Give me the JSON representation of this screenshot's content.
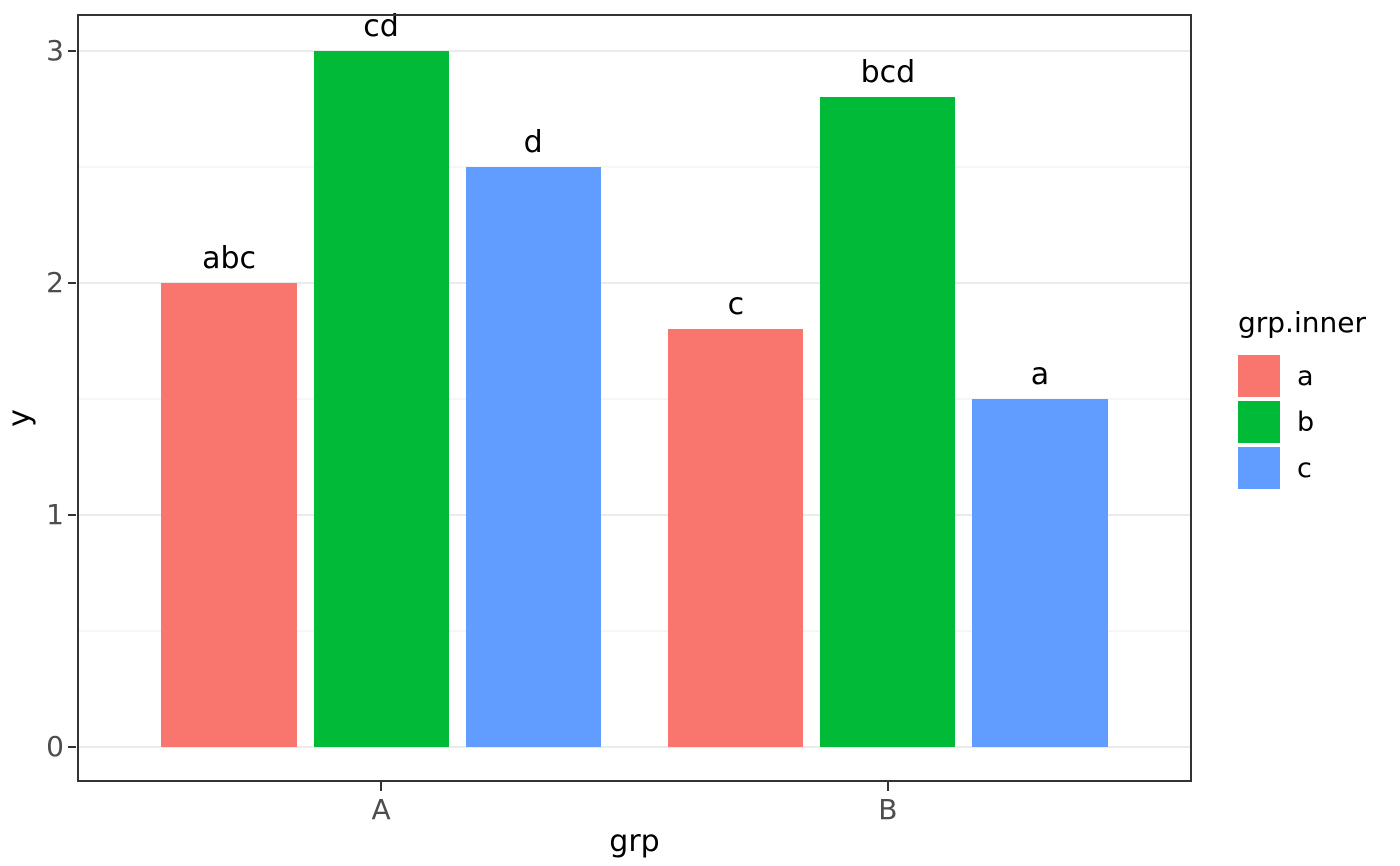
{
  "chart_data": {
    "type": "bar",
    "title": "",
    "xlabel": "grp",
    "ylabel": "y",
    "categories": [
      "A",
      "B"
    ],
    "series": [
      {
        "name": "a",
        "color": "#F8766D",
        "values": [
          2.0,
          1.8
        ],
        "bar_labels": [
          "abc",
          "c"
        ]
      },
      {
        "name": "b",
        "color": "#00BA38",
        "values": [
          3.0,
          2.8
        ],
        "bar_labels": [
          "cd",
          "bcd"
        ]
      },
      {
        "name": "c",
        "color": "#619CFF",
        "values": [
          2.5,
          1.5
        ],
        "bar_labels": [
          "d",
          "a"
        ]
      }
    ],
    "ylim": [
      0,
      3
    ],
    "yticks": [
      0,
      1,
      2,
      3
    ],
    "yminor": [
      0.5,
      1.5,
      2.5
    ],
    "legend_title": "grp.inner",
    "legend_position": "right",
    "grid": true,
    "style": {
      "panel_background": "#ffffff",
      "panel_border_color": "#333333",
      "grid_major_color": "#ebebeb",
      "grid_minor_color": "#f6f6f6",
      "tick_label_color": "#4d4d4d",
      "axis_title_color": "#000000",
      "bar_label_color": "#000000"
    }
  }
}
